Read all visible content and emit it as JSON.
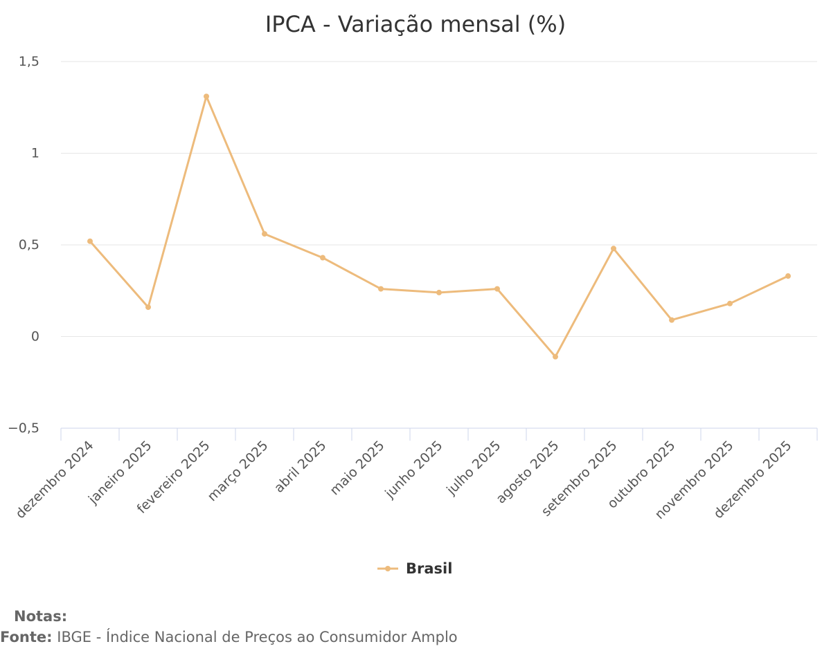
{
  "chart_data": {
    "type": "line",
    "title": "IPCA - Variação mensal (%)",
    "xlabel": "",
    "ylabel": "",
    "categories": [
      "dezembro 2024",
      "janeiro 2025",
      "fevereiro 2025",
      "março 2025",
      "abril 2025",
      "maio 2025",
      "junho 2025",
      "julho 2025",
      "agosto 2025",
      "setembro 2025",
      "outubro 2025",
      "novembro 2025",
      "dezembro 2025"
    ],
    "series": [
      {
        "name": "Brasil",
        "color": "#EDBB7C",
        "values": [
          0.52,
          0.16,
          1.31,
          0.56,
          0.43,
          0.26,
          0.24,
          0.26,
          -0.11,
          0.48,
          0.09,
          0.18,
          0.33
        ]
      }
    ],
    "ylim": [
      -0.5,
      1.5
    ],
    "yticks": [
      -0.5,
      0,
      0.5,
      1,
      1.5
    ],
    "ytick_labels": [
      "−0,5",
      "0",
      "0,5",
      "1",
      "1,5"
    ],
    "grid": true,
    "legend": "bottom-center"
  },
  "footer": {
    "notes_label": "Notas:",
    "source_label": "Fonte:",
    "source_text": "IBGE - Índice Nacional de Preços ao Consumidor Amplo"
  }
}
